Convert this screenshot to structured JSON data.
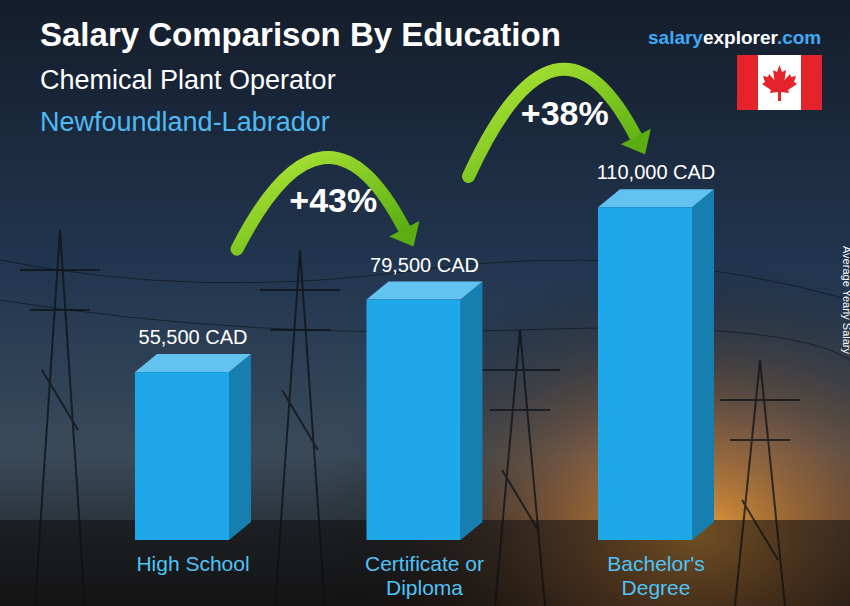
{
  "chart_data": {
    "type": "bar",
    "title": "Salary Comparison By Education",
    "subtitle": "Chemical Plant Operator",
    "location": "Newfoundland-Labrador",
    "source_parts": [
      "salary",
      "explorer",
      ".com"
    ],
    "y_label": "Average Yearly Salary",
    "categories": [
      "High School",
      "Certificate or Diploma",
      "Bachelor's Degree"
    ],
    "values": [
      55500,
      79500,
      110000
    ],
    "value_labels": [
      "55,500 CAD",
      "79,500 CAD",
      "110,000 CAD"
    ],
    "annotations": [
      "+43%",
      "+38%"
    ],
    "color": "#1ea8ea",
    "ylim": [
      0,
      120000
    ],
    "grid": false,
    "tick_labels": false,
    "data_labels": true
  }
}
